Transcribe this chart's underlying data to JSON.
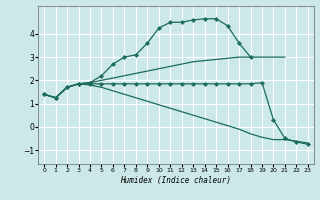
{
  "xlabel": "Humidex (Indice chaleur)",
  "bg_color": "#cce8e8",
  "grid_color": "#ffffff",
  "line_color": "#1a6b5e",
  "xlim": [
    -0.5,
    23.5
  ],
  "ylim": [
    -1.6,
    5.2
  ],
  "xticks": [
    0,
    1,
    2,
    3,
    4,
    5,
    6,
    7,
    8,
    9,
    10,
    11,
    12,
    13,
    14,
    15,
    16,
    17,
    18,
    19,
    20,
    21,
    22,
    23
  ],
  "yticks": [
    -1,
    0,
    1,
    2,
    3,
    4
  ],
  "series": [
    {
      "x": [
        0,
        1,
        2,
        3,
        4,
        5,
        6,
        7,
        8,
        9,
        10,
        11,
        12,
        13,
        14,
        15,
        16,
        17,
        18
      ],
      "y": [
        1.4,
        1.25,
        1.7,
        1.85,
        1.9,
        2.2,
        2.7,
        3.0,
        3.1,
        3.6,
        4.25,
        4.5,
        4.5,
        4.6,
        4.65,
        4.65,
        4.35,
        3.6,
        3.0
      ],
      "marker": true
    },
    {
      "x": [
        0,
        1,
        2,
        3,
        4,
        5,
        6,
        7,
        8,
        9,
        10,
        11,
        12,
        13,
        14,
        15,
        16,
        17,
        18,
        19,
        20,
        21
      ],
      "y": [
        1.4,
        1.25,
        1.7,
        1.85,
        1.9,
        2.0,
        2.1,
        2.2,
        2.3,
        2.4,
        2.5,
        2.6,
        2.7,
        2.8,
        2.85,
        2.9,
        2.95,
        3.0,
        3.0,
        3.0,
        3.0,
        3.0
      ],
      "marker": false
    },
    {
      "x": [
        0,
        1,
        2,
        3,
        4,
        5,
        6,
        7,
        8,
        9,
        10,
        11,
        12,
        13,
        14,
        15,
        16,
        17,
        18,
        19,
        20,
        21,
        22,
        23
      ],
      "y": [
        1.4,
        1.25,
        1.7,
        1.85,
        1.85,
        1.85,
        1.85,
        1.85,
        1.85,
        1.85,
        1.85,
        1.85,
        1.85,
        1.85,
        1.85,
        1.85,
        1.85,
        1.85,
        1.85,
        1.9,
        0.3,
        -0.5,
        -0.65,
        -0.75
      ],
      "marker": true
    },
    {
      "x": [
        0,
        1,
        2,
        3,
        4,
        5,
        6,
        7,
        8,
        9,
        10,
        11,
        12,
        13,
        14,
        15,
        16,
        17,
        18,
        19,
        20,
        21,
        22,
        23
      ],
      "y": [
        1.4,
        1.25,
        1.7,
        1.85,
        1.8,
        1.7,
        1.55,
        1.4,
        1.25,
        1.1,
        0.95,
        0.8,
        0.65,
        0.5,
        0.35,
        0.2,
        0.05,
        -0.1,
        -0.3,
        -0.45,
        -0.55,
        -0.55,
        -0.62,
        -0.7
      ],
      "marker": false
    }
  ]
}
